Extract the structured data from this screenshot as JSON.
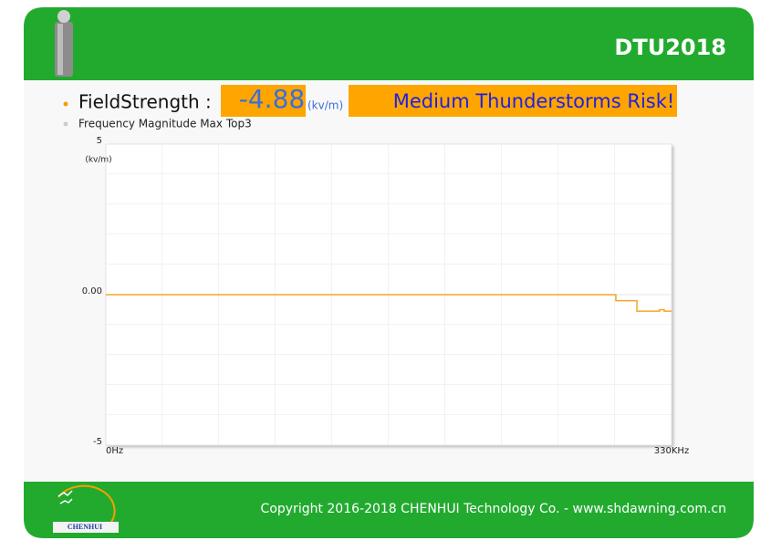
{
  "header": {
    "title": "DTU2018"
  },
  "status": {
    "label": "FieldStrength :",
    "value": "-4.88",
    "unit": "(kv/m)",
    "risk": "Medium Thunderstorms Risk!"
  },
  "chart_section": {
    "label": "Frequency Magnitude Max Top3"
  },
  "chart_data": {
    "type": "line",
    "y_label": "(kv/m)",
    "color": "#f5a623",
    "x": [
      0,
      297000,
      297500,
      307600,
      309800,
      322500,
      323000,
      325200,
      325700,
      330000
    ],
    "values": [
      0,
      0,
      -0.2,
      -0.2,
      -0.55,
      -0.55,
      -0.5,
      -0.5,
      -0.55,
      -0.55
    ],
    "xlim": [
      0,
      330000
    ],
    "xticks": [
      {
        "value": 0,
        "label": "0Hz"
      },
      {
        "value": 330000,
        "label": "330KHz"
      }
    ],
    "ylim": [
      -5,
      5
    ],
    "yticks": [
      -5,
      {
        "value": 0,
        "label": "0.00"
      },
      5
    ],
    "grid": true
  },
  "footer": {
    "logo": "CHENHUI",
    "copyright": "Copyright 2016-2018 CHENHUI Technology Co. - www.shdawning.com.cn"
  }
}
